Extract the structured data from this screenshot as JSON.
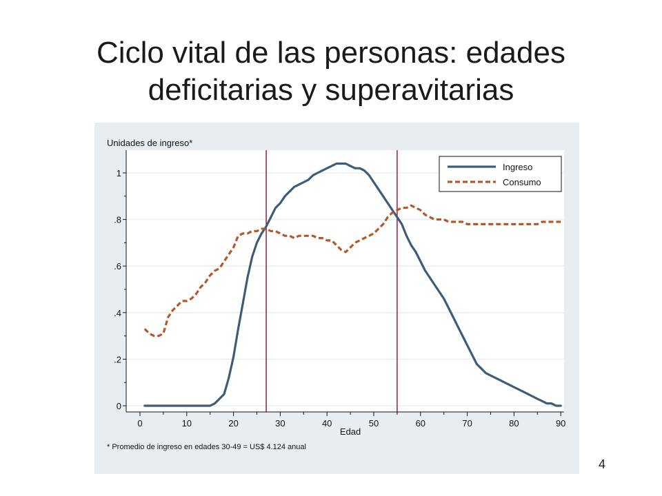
{
  "slide": {
    "title_line1": "Ciclo vital de las personas: edades",
    "title_line2": "deficitarias y superavitarias",
    "page_number": "4"
  },
  "colors": {
    "panel_background": "#e7edf1",
    "plot_background": "#ffffff",
    "gridline": "#e7edf1",
    "ingreso": "#3c5c78",
    "consumo": "#b0592a",
    "reference_line": "#9b1b3a"
  },
  "chart_data": {
    "type": "line",
    "ylabel": "Unidades de ingreso*",
    "xlabel": "Edad",
    "note": "* Promedio de ingreso en edades 30-49 = US$ 4.124 anual",
    "xlim": [
      0,
      90
    ],
    "ylim": [
      0,
      1.05
    ],
    "x_ticks": [
      0,
      10,
      20,
      30,
      40,
      50,
      60,
      70,
      80,
      90
    ],
    "x_tick_labels": [
      "0",
      "10",
      "20",
      "30",
      "40",
      "50",
      "60",
      "70",
      "80",
      "90"
    ],
    "y_ticks": [
      0,
      0.2,
      0.4,
      0.6,
      0.8,
      1
    ],
    "y_tick_labels": [
      "0",
      ".2",
      ".4",
      ".6",
      ".8",
      "1"
    ],
    "grid": "horizontal",
    "legend_position": "top-right",
    "reference_lines_x": [
      27,
      55
    ],
    "series": [
      {
        "name": "Ingreso",
        "style": "solid",
        "x": [
          1,
          2,
          3,
          4,
          5,
          6,
          7,
          8,
          9,
          10,
          11,
          12,
          13,
          14,
          15,
          16,
          17,
          18,
          19,
          20,
          21,
          22,
          23,
          24,
          25,
          26,
          27,
          28,
          29,
          30,
          31,
          32,
          33,
          34,
          35,
          36,
          37,
          38,
          39,
          40,
          41,
          42,
          43,
          44,
          45,
          46,
          47,
          48,
          49,
          50,
          51,
          52,
          53,
          54,
          55,
          56,
          57,
          58,
          59,
          60,
          61,
          62,
          63,
          64,
          65,
          66,
          67,
          68,
          69,
          70,
          71,
          72,
          73,
          74,
          75,
          76,
          77,
          78,
          79,
          80,
          81,
          82,
          83,
          84,
          85,
          86,
          87,
          88,
          89,
          90
        ],
        "values": [
          0,
          0,
          0,
          0,
          0,
          0,
          0,
          0,
          0,
          0,
          0,
          0,
          0,
          0,
          0,
          0.01,
          0.03,
          0.05,
          0.12,
          0.21,
          0.33,
          0.44,
          0.55,
          0.64,
          0.7,
          0.74,
          0.77,
          0.81,
          0.85,
          0.87,
          0.9,
          0.92,
          0.94,
          0.95,
          0.96,
          0.97,
          0.99,
          1.0,
          1.01,
          1.02,
          1.03,
          1.04,
          1.04,
          1.04,
          1.03,
          1.02,
          1.02,
          1.01,
          0.99,
          0.96,
          0.93,
          0.9,
          0.87,
          0.84,
          0.81,
          0.78,
          0.73,
          0.69,
          0.66,
          0.62,
          0.58,
          0.55,
          0.52,
          0.49,
          0.46,
          0.42,
          0.38,
          0.34,
          0.3,
          0.26,
          0.22,
          0.18,
          0.16,
          0.14,
          0.13,
          0.12,
          0.11,
          0.1,
          0.09,
          0.08,
          0.07,
          0.06,
          0.05,
          0.04,
          0.03,
          0.02,
          0.01,
          0.01,
          0,
          0
        ]
      },
      {
        "name": "Consumo",
        "style": "dashed",
        "x": [
          1,
          2,
          3,
          4,
          5,
          6,
          7,
          8,
          9,
          10,
          11,
          12,
          13,
          14,
          15,
          16,
          17,
          18,
          19,
          20,
          21,
          22,
          23,
          24,
          25,
          26,
          27,
          28,
          29,
          30,
          31,
          32,
          33,
          34,
          35,
          36,
          37,
          38,
          39,
          40,
          41,
          42,
          43,
          44,
          45,
          46,
          47,
          48,
          49,
          50,
          51,
          52,
          53,
          54,
          55,
          56,
          57,
          58,
          59,
          60,
          61,
          62,
          63,
          64,
          65,
          66,
          67,
          68,
          69,
          70,
          71,
          72,
          73,
          74,
          75,
          76,
          77,
          78,
          79,
          80,
          81,
          82,
          83,
          84,
          85,
          86,
          87,
          88,
          89,
          90
        ],
        "values": [
          0.33,
          0.31,
          0.3,
          0.3,
          0.31,
          0.38,
          0.41,
          0.43,
          0.45,
          0.45,
          0.46,
          0.48,
          0.51,
          0.53,
          0.56,
          0.58,
          0.59,
          0.62,
          0.65,
          0.68,
          0.73,
          0.74,
          0.74,
          0.75,
          0.75,
          0.76,
          0.76,
          0.75,
          0.75,
          0.74,
          0.73,
          0.73,
          0.72,
          0.73,
          0.73,
          0.73,
          0.73,
          0.72,
          0.72,
          0.71,
          0.71,
          0.69,
          0.67,
          0.66,
          0.68,
          0.7,
          0.71,
          0.72,
          0.73,
          0.74,
          0.76,
          0.78,
          0.81,
          0.83,
          0.84,
          0.85,
          0.85,
          0.86,
          0.85,
          0.84,
          0.82,
          0.81,
          0.8,
          0.8,
          0.8,
          0.79,
          0.79,
          0.79,
          0.79,
          0.78,
          0.78,
          0.78,
          0.78,
          0.78,
          0.78,
          0.78,
          0.78,
          0.78,
          0.78,
          0.78,
          0.78,
          0.78,
          0.78,
          0.78,
          0.78,
          0.79,
          0.79,
          0.79,
          0.79,
          0.79
        ]
      }
    ]
  }
}
